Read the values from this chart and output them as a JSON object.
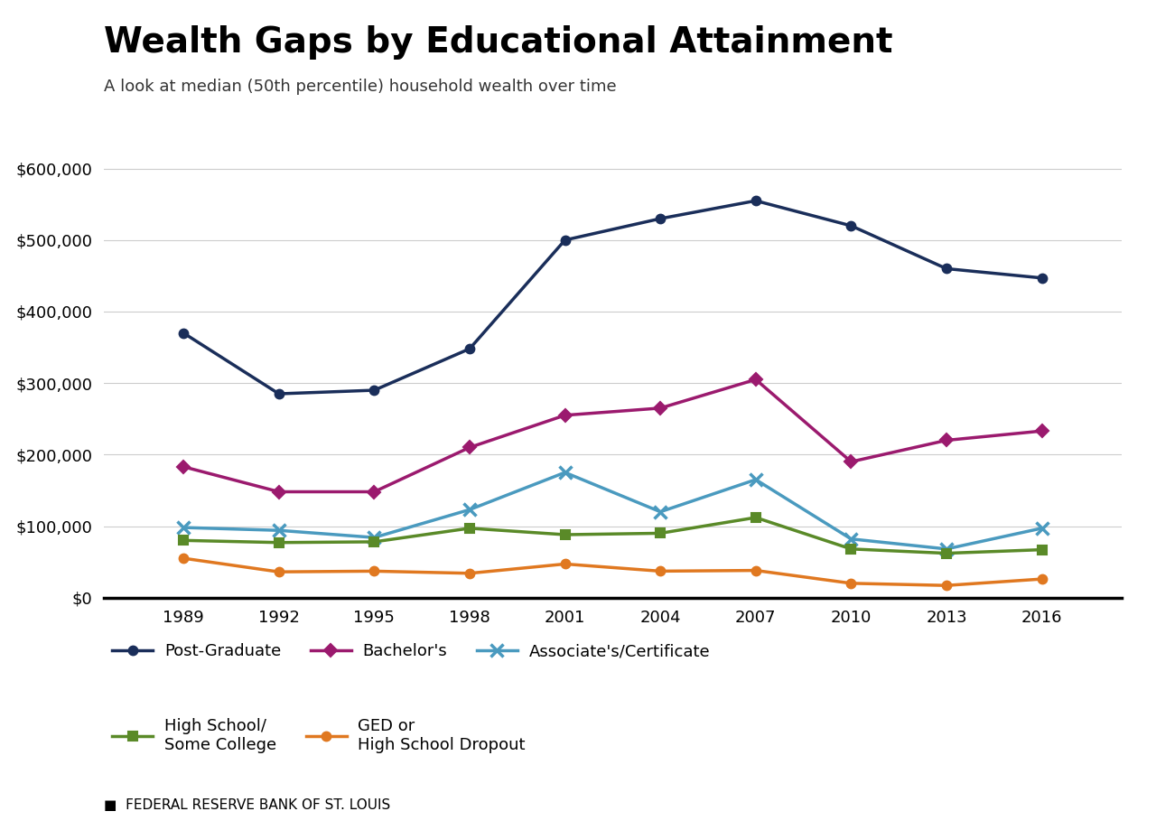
{
  "title": "Wealth Gaps by Educational Attainment",
  "subtitle": "A look at median (50th percentile) household wealth over time",
  "source": "FEDERAL RESERVE BANK OF ST. LOUIS",
  "years": [
    1989,
    1992,
    1995,
    1998,
    2001,
    2004,
    2007,
    2010,
    2013,
    2016
  ],
  "series": {
    "Post-Graduate": {
      "values": [
        370000,
        285000,
        290000,
        348000,
        500000,
        530000,
        555000,
        520000,
        460000,
        447000
      ],
      "color": "#1a2e5a",
      "marker": "o",
      "linewidth": 2.5,
      "markersize": 7,
      "label": "Post-Graduate"
    },
    "Bachelor's": {
      "values": [
        183000,
        148000,
        148000,
        210000,
        255000,
        265000,
        305000,
        190000,
        220000,
        233000
      ],
      "color": "#9b1a6e",
      "marker": "D",
      "linewidth": 2.5,
      "markersize": 7,
      "label": "Bachelor's"
    },
    "Associate's/Certificate": {
      "values": [
        98000,
        94000,
        84000,
        123000,
        175000,
        120000,
        165000,
        82000,
        68000,
        97000
      ],
      "color": "#4a9abf",
      "marker": "x",
      "linewidth": 2.5,
      "markersize": 10,
      "label": "Associate's/Certificate"
    },
    "High School/Some College": {
      "values": [
        80000,
        77000,
        78000,
        97000,
        88000,
        90000,
        112000,
        68000,
        62000,
        67000
      ],
      "color": "#5a8a28",
      "marker": "s",
      "linewidth": 2.5,
      "markersize": 7,
      "label": "High School/\nSome College"
    },
    "GED or High School Dropout": {
      "values": [
        55000,
        36000,
        37000,
        34000,
        47000,
        37000,
        38000,
        20000,
        17000,
        26000
      ],
      "color": "#e07820",
      "marker": "o",
      "linewidth": 2.5,
      "markersize": 7,
      "label": "GED or\nHigh School Dropout"
    }
  },
  "ylim": [
    0,
    650000
  ],
  "yticks": [
    0,
    100000,
    200000,
    300000,
    400000,
    500000,
    600000
  ],
  "background_color": "#ffffff",
  "grid_color": "#cccccc",
  "title_fontsize": 28,
  "subtitle_fontsize": 13,
  "axis_fontsize": 13,
  "legend_fontsize": 13
}
